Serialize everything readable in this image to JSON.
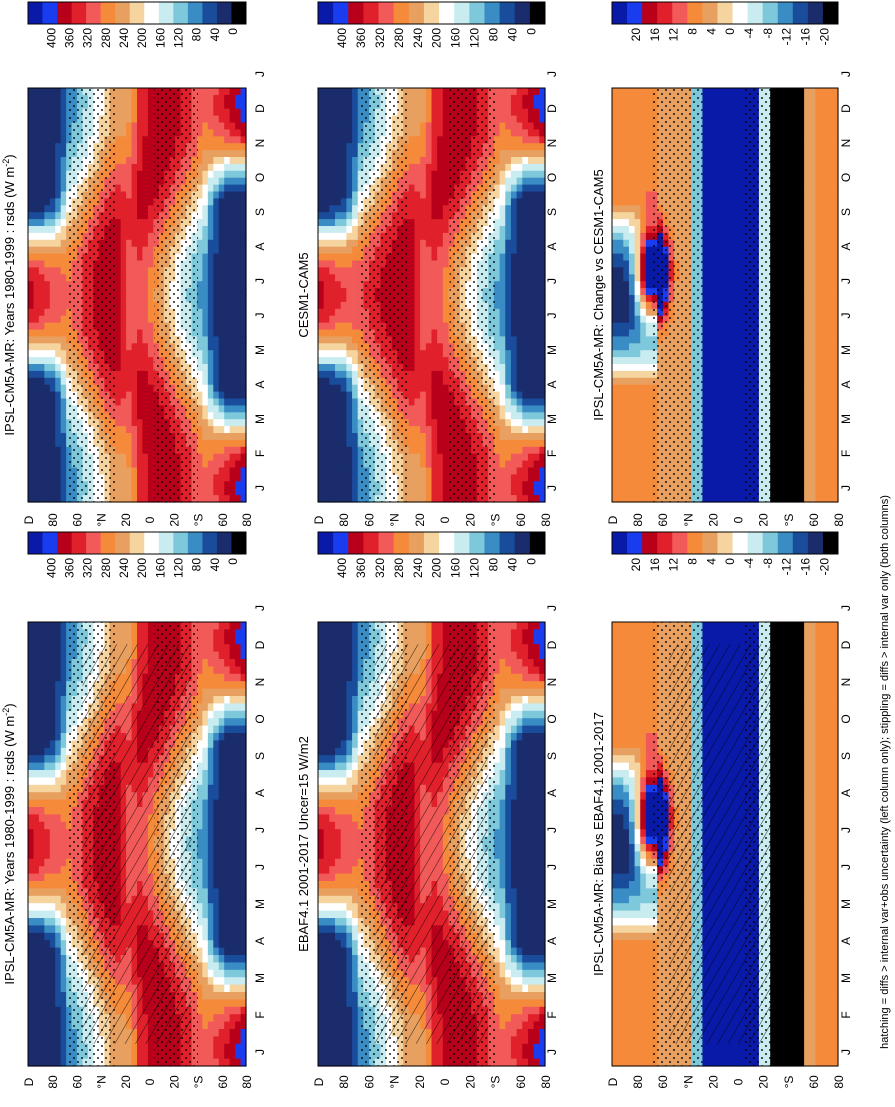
{
  "figure": {
    "caption": "hatching = diffs > internal var+obs uncertainty (left column only); stippling = diffs > internal var only (both columns)"
  },
  "chart_data": [
    {
      "type": "heatmap",
      "id": "ipsl-left",
      "title": "IPSL-CM5A-MR: Years 1980-1999 : rsds (W m",
      "title_sup": "-2",
      "title_end": ")",
      "kind": "climatology",
      "months": [
        "J",
        "F",
        "M",
        "A",
        "M",
        "J",
        "J",
        "A",
        "S",
        "O",
        "N",
        "D",
        "J"
      ],
      "lat_ticks": [
        "80",
        "60",
        "°N",
        "20",
        "0",
        "20",
        "°S",
        "60",
        "80"
      ],
      "lat_start_label": "D",
      "colorbar_ticks": [
        "400",
        "360",
        "320",
        "280",
        "240",
        "200",
        "160",
        "120",
        "80",
        "40",
        "0"
      ],
      "hatching": true,
      "stippling": true
    },
    {
      "type": "heatmap",
      "id": "ipsl-right",
      "title": "IPSL-CM5A-MR: Years 1980-1999 : rsds (W m",
      "title_sup": "-2",
      "title_end": ")",
      "kind": "climatology",
      "months": [
        "J",
        "F",
        "M",
        "A",
        "M",
        "J",
        "J",
        "A",
        "S",
        "O",
        "N",
        "D",
        "J"
      ],
      "lat_ticks": [
        "80",
        "60",
        "°N",
        "20",
        "0",
        "20",
        "°S",
        "60",
        "80"
      ],
      "lat_start_label": "D",
      "colorbar_ticks": [
        "400",
        "360",
        "320",
        "280",
        "240",
        "200",
        "160",
        "120",
        "80",
        "40",
        "0"
      ],
      "hatching": false,
      "stippling": true
    },
    {
      "type": "heatmap",
      "id": "ebaf",
      "title": "EBAF4.1 2001-2017 Uncer=15 W/m2",
      "title_sup": "",
      "title_end": "",
      "kind": "climatology",
      "months": [
        "J",
        "F",
        "M",
        "A",
        "M",
        "J",
        "J",
        "A",
        "S",
        "O",
        "N",
        "D",
        "J"
      ],
      "lat_ticks": [
        "80",
        "60",
        "°N",
        "20",
        "0",
        "20",
        "°S",
        "60",
        "80"
      ],
      "lat_start_label": "D",
      "colorbar_ticks": [
        "400",
        "360",
        "320",
        "280",
        "240",
        "200",
        "160",
        "120",
        "80",
        "40",
        "0"
      ],
      "hatching": true,
      "stippling": true
    },
    {
      "type": "heatmap",
      "id": "cesm",
      "title": "CESM1-CAM5",
      "title_sup": "",
      "title_end": "",
      "kind": "climatology",
      "months": [
        "J",
        "F",
        "M",
        "A",
        "M",
        "J",
        "J",
        "A",
        "S",
        "O",
        "N",
        "D",
        "J"
      ],
      "lat_ticks": [
        "80",
        "60",
        "°N",
        "20",
        "0",
        "20",
        "°S",
        "60",
        "80"
      ],
      "lat_start_label": "D",
      "colorbar_ticks": [
        "400",
        "360",
        "320",
        "280",
        "240",
        "200",
        "160",
        "120",
        "80",
        "40",
        "0"
      ],
      "hatching": false,
      "stippling": true
    },
    {
      "type": "heatmap",
      "id": "bias",
      "title": "IPSL-CM5A-MR: Bias vs EBAF4.1 2001-2017",
      "title_sup": "",
      "title_end": "",
      "kind": "difference",
      "months": [
        "J",
        "F",
        "M",
        "A",
        "M",
        "J",
        "J",
        "A",
        "S",
        "O",
        "N",
        "D",
        "J"
      ],
      "lat_ticks": [
        "80",
        "60",
        "°N",
        "20",
        "0",
        "20",
        "°S",
        "60",
        "80"
      ],
      "lat_start_label": "D",
      "colorbar_ticks": [
        "20",
        "16",
        "12",
        "8",
        "4",
        "0",
        "-4",
        "-8",
        "-12",
        "-16",
        "-20"
      ],
      "hatching": true,
      "stippling": true
    },
    {
      "type": "heatmap",
      "id": "change",
      "title": "IPSL-CM5A-MR: Change vs CESM1-CAM5",
      "title_sup": "",
      "title_end": "",
      "kind": "difference",
      "months": [
        "J",
        "F",
        "M",
        "A",
        "M",
        "J",
        "J",
        "A",
        "S",
        "O",
        "N",
        "D",
        "J"
      ],
      "lat_ticks": [
        "80",
        "60",
        "°N",
        "20",
        "0",
        "20",
        "°S",
        "60",
        "80"
      ],
      "lat_start_label": "D",
      "colorbar_ticks": [
        "20",
        "16",
        "12",
        "8",
        "4",
        "0",
        "-4",
        "-8",
        "-12",
        "-16",
        "-20"
      ],
      "hatching": false,
      "stippling": true
    }
  ],
  "palettes": {
    "climatology": [
      "#0a1aa8",
      "#1a3cf0",
      "#b8001a",
      "#e0202a",
      "#f25a5a",
      "#f58a3a",
      "#e8a060",
      "#f5d4a0",
      "#ffffff",
      "#c8ecf0",
      "#7ec8dc",
      "#3a8cc4",
      "#1a4c9c",
      "#1a2c6c",
      "#000000"
    ],
    "difference": [
      "#0a1aa8",
      "#1a3cf0",
      "#b8001a",
      "#e0202a",
      "#f25a5a",
      "#f58a3a",
      "#e8a060",
      "#f5d4a0",
      "#ffffff",
      "#c8ecf0",
      "#7ec8dc",
      "#3a8cc4",
      "#1a4c9c",
      "#1a2c6c",
      "#000000"
    ]
  }
}
